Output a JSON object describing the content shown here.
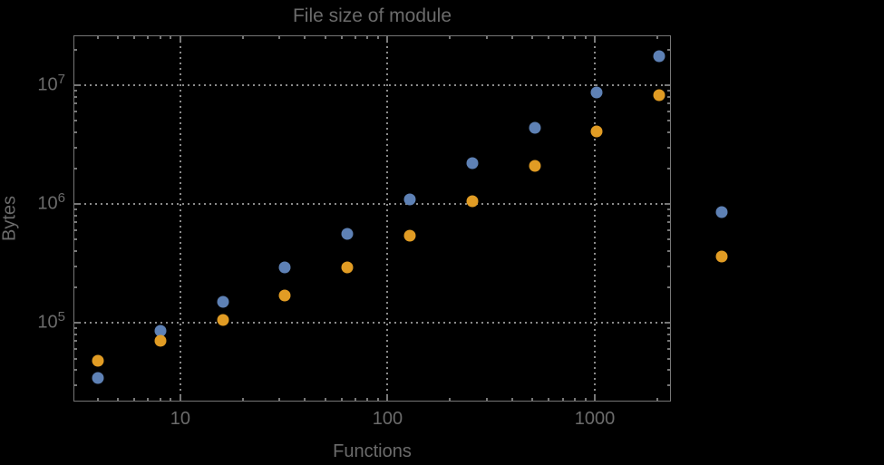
{
  "chart_data": {
    "type": "scatter",
    "title": "File size of module",
    "xlabel": "Functions",
    "ylabel": "Bytes",
    "x_scale": "log",
    "y_scale": "log",
    "xlim": [
      3.05,
      2330
    ],
    "ylim": [
      21700,
      26300000
    ],
    "grid": "dotted gray lines at decade positions, frame ticks on all four sides",
    "legend": "none",
    "x": [
      4,
      8,
      16,
      32,
      64,
      128,
      256,
      512,
      1024,
      2048,
      4096
    ],
    "series": [
      {
        "name": "series-1-blue",
        "color": "#5E81B5",
        "values": [
          34000,
          86000,
          150000,
          290000,
          560000,
          1100000,
          2200000,
          4400000,
          8700000,
          17500000,
          850000
        ]
      },
      {
        "name": "series-2-orange",
        "color": "#E19C24",
        "values": [
          48000,
          70000,
          105000,
          170000,
          290000,
          540000,
          1050000,
          2100000,
          4100000,
          8300000,
          360000
        ]
      }
    ],
    "x_ticks": [
      {
        "value": 10,
        "label": "10"
      },
      {
        "value": 100,
        "label": "100"
      },
      {
        "value": 1000,
        "label": "1000"
      }
    ],
    "y_ticks": [
      {
        "value": 100000,
        "base": "10",
        "exponent": "5"
      },
      {
        "value": 1000000,
        "base": "10",
        "exponent": "6"
      },
      {
        "value": 10000000,
        "base": "10",
        "exponent": "7"
      }
    ]
  },
  "colors": {
    "background": "#000000",
    "frame": "#767676",
    "grid": "#8A8A8A",
    "text": "#6B6B6B",
    "series1": "#5E81B5",
    "series2": "#E19C24"
  }
}
